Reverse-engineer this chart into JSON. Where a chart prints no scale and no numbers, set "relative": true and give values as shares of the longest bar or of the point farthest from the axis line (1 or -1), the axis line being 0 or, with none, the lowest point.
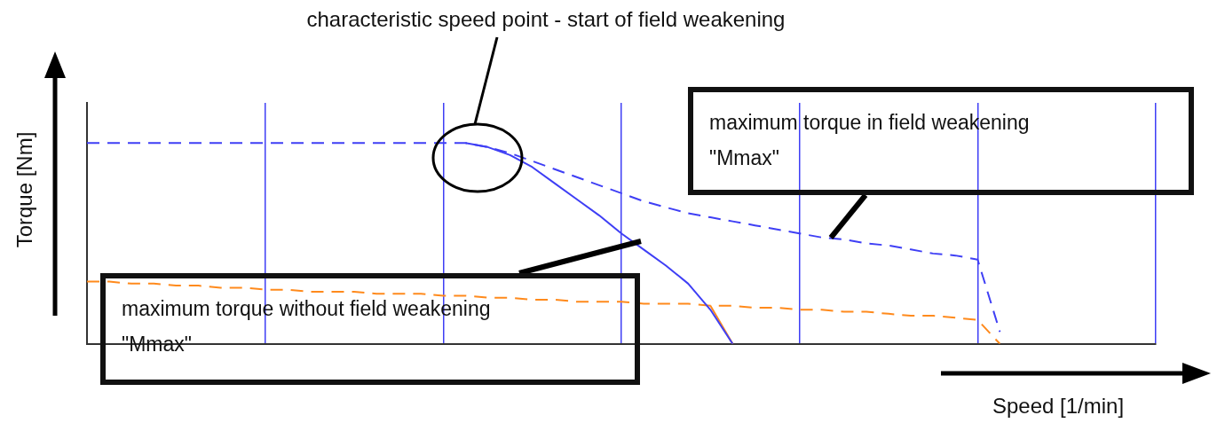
{
  "chart_data": {
    "type": "line",
    "relative": true,
    "xlabel": "Speed [1/min]",
    "ylabel": "Torque [Nm]",
    "grid": "x",
    "legend": false,
    "marker": "none",
    "categories": [
      null,
      null,
      null,
      null,
      null,
      null,
      null,
      null,
      null,
      null,
      null,
      null,
      null,
      null,
      null,
      null,
      null,
      null,
      null,
      null,
      null,
      null,
      null,
      null,
      null,
      null,
      null,
      null,
      null,
      null,
      null,
      null,
      null,
      null,
      null,
      null,
      null,
      null,
      null,
      null,
      null,
      null,
      null,
      null,
      null,
      null,
      null,
      null,
      null
    ],
    "series": [
      {
        "color": "#3f3ff5",
        "line_style": "dashed",
        "values": [
          1.0,
          1.0,
          1.0,
          1.0,
          1.0,
          1.0,
          1.0,
          1.0,
          1.0,
          1.0,
          1.0,
          1.0,
          1.0,
          1.0,
          1.0,
          1.0,
          1.0,
          1.0,
          0.98,
          0.95,
          0.91,
          0.87,
          0.83,
          0.79,
          0.75,
          0.71,
          0.68,
          0.65,
          0.63,
          0.61,
          0.59,
          0.57,
          0.55,
          0.53,
          0.52,
          0.5,
          0.49,
          0.47,
          0.45,
          0.44,
          0.42,
          0.06,
          null,
          null,
          null,
          null,
          null,
          null,
          null
        ]
      },
      {
        "color": "#3f3ff5",
        "line_style": "solid",
        "values": [
          null,
          null,
          null,
          null,
          null,
          null,
          null,
          null,
          null,
          null,
          null,
          null,
          null,
          null,
          null,
          null,
          null,
          1.0,
          0.98,
          0.94,
          0.88,
          0.8,
          0.72,
          0.64,
          0.55,
          0.47,
          0.39,
          0.3,
          0.17,
          0.0,
          null,
          null,
          null,
          null,
          null,
          null,
          null,
          null,
          null,
          null,
          null,
          null,
          null,
          null,
          null,
          null,
          null,
          null,
          null
        ]
      },
      {
        "color": "#ff8a1c",
        "line_style": "dashed",
        "values": [
          0.31,
          0.31,
          0.3,
          0.3,
          0.29,
          0.29,
          0.28,
          0.28,
          0.27,
          0.27,
          0.26,
          0.26,
          0.26,
          0.25,
          0.25,
          0.25,
          0.24,
          0.24,
          0.23,
          0.23,
          0.22,
          0.22,
          0.21,
          0.21,
          0.21,
          0.2,
          0.2,
          0.2,
          0.19,
          0.19,
          0.18,
          0.18,
          0.17,
          0.17,
          0.16,
          0.16,
          0.15,
          0.14,
          0.14,
          0.13,
          0.12,
          0.0,
          null,
          null,
          null,
          null,
          null,
          null,
          null
        ]
      },
      {
        "color": "#ff8a1c",
        "line_style": "solid",
        "values": [
          null,
          null,
          null,
          null,
          null,
          null,
          null,
          null,
          null,
          null,
          null,
          null,
          null,
          null,
          null,
          null,
          null,
          null,
          null,
          null,
          null,
          null,
          null,
          null,
          null,
          null,
          null,
          null,
          0.19,
          0.0,
          null,
          null,
          null,
          null,
          null,
          null,
          null,
          null,
          null,
          null,
          null,
          null,
          null,
          null,
          null,
          null,
          null,
          null,
          null
        ]
      }
    ],
    "annotations": [
      "characteristic speed point -  start of field weakening",
      "maximum torque in field weakening\n\"Mmax\"",
      "maximum torque without field weakening\n\"Mmax\""
    ]
  }
}
